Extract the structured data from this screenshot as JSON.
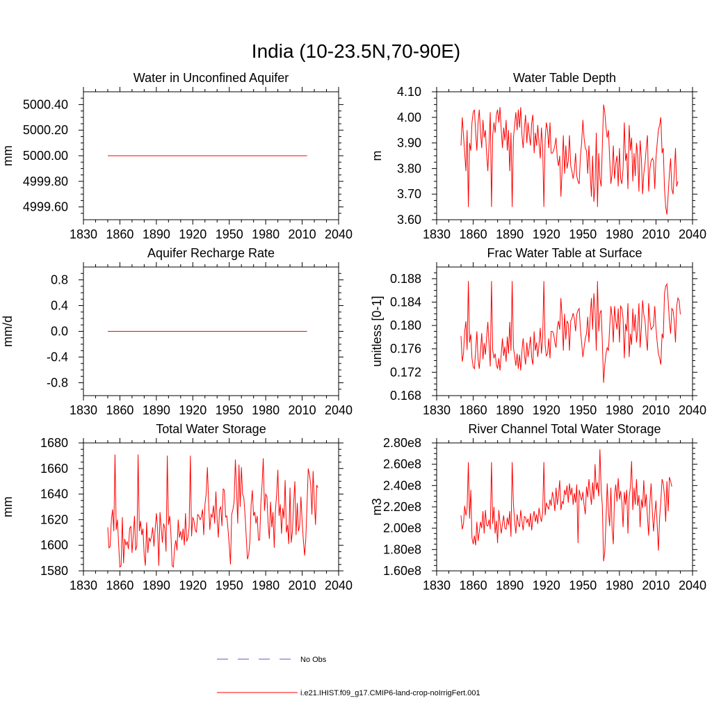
{
  "figure": {
    "title": "India (10-23.5N,70-90E)"
  },
  "legend": {
    "placement": "bottom-center",
    "entries": [
      {
        "label": "No Obs",
        "color": "#5a5ad2",
        "style": "dashed"
      },
      {
        "label": "i.e21.IHIST.f09_g17.CMIP6-land-crop-noIrrigFert.001",
        "color": "#ff0000",
        "style": "solid"
      }
    ]
  },
  "chart_data": [
    {
      "type": "line",
      "title": "Water in Unconfined Aquifer",
      "xlabel": "",
      "ylabel": "mm",
      "xlim": [
        1830,
        2040
      ],
      "ylim": [
        4999.5,
        5000.5
      ],
      "xticks": [
        1830,
        1860,
        1890,
        1920,
        1950,
        1980,
        2010,
        2040
      ],
      "yticks": [
        4999.6,
        4999.8,
        5000.0,
        5000.2,
        5000.4
      ],
      "ytick_labels": [
        "4999.60",
        "4999.80",
        "5000.00",
        "5000.20",
        "5000.40"
      ],
      "grid": false,
      "series": [
        {
          "name": "i.e21.IHIST.f09_g17.CMIP6-land-crop-noIrrigFert.001",
          "color": "#ff0000",
          "x": [
            1850,
            2014
          ],
          "y": [
            5000.0,
            5000.0
          ]
        }
      ]
    },
    {
      "type": "line",
      "title": "Water Table Depth",
      "xlabel": "",
      "ylabel": "m",
      "xlim": [
        1830,
        2040
      ],
      "ylim": [
        3.6,
        4.1
      ],
      "xticks": [
        1830,
        1860,
        1890,
        1920,
        1950,
        1980,
        2010,
        2040
      ],
      "yticks": [
        3.6,
        3.7,
        3.8,
        3.9,
        4.0,
        4.1
      ],
      "ytick_labels": [
        "3.60",
        "3.70",
        "3.80",
        "3.90",
        "4.00",
        "4.10"
      ],
      "grid": false,
      "series": [
        {
          "name": "i.e21.IHIST.f09_g17.CMIP6-land-crop-noIrrigFert.001",
          "color": "#ff0000",
          "x_start": 1850,
          "y": [
            3.89,
            4.0,
            3.93,
            3.86,
            3.79,
            3.95,
            3.65,
            3.9,
            3.87,
            3.98,
            4.02,
            4.03,
            3.94,
            3.87,
            3.98,
            4.03,
            3.94,
            3.88,
            3.99,
            3.92,
            3.95,
            3.86,
            3.79,
            3.9,
            4.02,
            3.65,
            3.93,
            3.98,
            3.94,
            4.01,
            4.03,
            3.98,
            4.04,
            3.95,
            3.88,
            3.96,
            3.91,
            3.99,
            3.87,
            3.95,
            3.79,
            3.94,
            3.65,
            3.92,
            3.97,
            4.02,
            3.95,
            4.03,
            3.96,
            4.04,
            3.93,
            3.88,
            3.96,
            4.01,
            3.9,
            3.98,
            3.93,
            3.89,
            3.98,
            4.01,
            3.86,
            3.94,
            3.89,
            3.97,
            3.9,
            3.84,
            3.96,
            3.88,
            3.65,
            3.91,
            3.98,
            3.95,
            3.88,
            3.98,
            3.86,
            3.86,
            3.87,
            3.89,
            3.92,
            3.84,
            3.81,
            3.85,
            3.69,
            3.8,
            3.93,
            3.78,
            3.89,
            3.8,
            3.83,
            3.93,
            3.81,
            3.79,
            3.76,
            3.79,
            3.86,
            3.77,
            3.75,
            3.74,
            3.85,
            3.9,
            3.99,
            3.92,
            3.88,
            3.87,
            3.78,
            3.89,
            3.78,
            3.69,
            3.85,
            3.67,
            3.73,
            3.94,
            3.65,
            3.86,
            3.76,
            3.73,
            3.89,
            4.05,
            4.02,
            3.96,
            3.92,
            3.95,
            3.84,
            3.74,
            3.78,
            3.89,
            3.76,
            3.82,
            3.85,
            3.73,
            3.88,
            3.76,
            3.74,
            3.8,
            3.98,
            3.83,
            3.86,
            3.72,
            3.97,
            3.87,
            3.92,
            3.75,
            3.86,
            3.77,
            3.9,
            3.85,
            3.71,
            3.91,
            3.84,
            3.7,
            3.78,
            3.82,
            3.88,
            3.93,
            3.71,
            3.8,
            3.83,
            3.84,
            3.83,
            3.72,
            3.84,
            3.9,
            3.95,
            3.97,
            4.0,
            3.86,
            3.88,
            3.72,
            3.65,
            3.62,
            3.7,
            3.78,
            3.84,
            3.72,
            3.7,
            3.78,
            3.88,
            3.73,
            3.75
          ]
        }
      ]
    },
    {
      "type": "line",
      "title": "Aquifer Recharge Rate",
      "xlabel": "",
      "ylabel": "mm/d",
      "xlim": [
        1830,
        2040
      ],
      "ylim": [
        -1.0,
        1.0
      ],
      "xticks": [
        1830,
        1860,
        1890,
        1920,
        1950,
        1980,
        2010,
        2040
      ],
      "yticks": [
        -0.8,
        -0.4,
        0.0,
        0.4,
        0.8
      ],
      "ytick_labels": [
        "-0.8",
        "-0.4",
        "0.0",
        "0.4",
        "0.8"
      ],
      "grid": false,
      "series": [
        {
          "name": "i.e21.IHIST.f09_g17.CMIP6-land-crop-noIrrigFert.001",
          "color": "#ff0000",
          "x": [
            1850,
            2014
          ],
          "y": [
            0.0,
            0.0
          ]
        }
      ]
    },
    {
      "type": "line",
      "title": "Frac Water Table at Surface",
      "xlabel": "",
      "ylabel": "unitless [0-1]",
      "xlim": [
        1830,
        2040
      ],
      "ylim": [
        0.168,
        0.19
      ],
      "xticks": [
        1830,
        1860,
        1890,
        1920,
        1950,
        1980,
        2010,
        2040
      ],
      "yticks": [
        0.168,
        0.172,
        0.176,
        0.18,
        0.184,
        0.188
      ],
      "ytick_labels": [
        "0.168",
        "0.172",
        "0.176",
        "0.180",
        "0.184",
        "0.188"
      ],
      "grid": false,
      "series": [
        {
          "name": "i.e21.IHIST.f09_g17.CMIP6-land-crop-noIrrigFert.001",
          "color": "#ff0000",
          "x_start": 1850,
          "y": [
            0.1782,
            0.1738,
            0.1752,
            0.179,
            0.1807,
            0.1758,
            0.1876,
            0.1771,
            0.1785,
            0.1744,
            0.1729,
            0.1726,
            0.1757,
            0.179,
            0.1742,
            0.1726,
            0.1757,
            0.1787,
            0.1742,
            0.177,
            0.175,
            0.1779,
            0.1806,
            0.1767,
            0.173,
            0.1876,
            0.1758,
            0.1744,
            0.1752,
            0.1733,
            0.1726,
            0.1744,
            0.1723,
            0.1752,
            0.1778,
            0.1748,
            0.1764,
            0.1738,
            0.1781,
            0.1752,
            0.1806,
            0.1757,
            0.1876,
            0.1762,
            0.1748,
            0.1731,
            0.1752,
            0.1726,
            0.175,
            0.1723,
            0.1757,
            0.1778,
            0.175,
            0.1733,
            0.1771,
            0.1746,
            0.1762,
            0.1781,
            0.1744,
            0.1733,
            0.179,
            0.1757,
            0.1771,
            0.1746,
            0.1767,
            0.1796,
            0.1752,
            0.178,
            0.1876,
            0.1767,
            0.1748,
            0.1752,
            0.1778,
            0.1744,
            0.179,
            0.179,
            0.1786,
            0.1771,
            0.1762,
            0.1796,
            0.1808,
            0.1793,
            0.1847,
            0.1812,
            0.1757,
            0.182,
            0.1776,
            0.1808,
            0.1803,
            0.1757,
            0.1808,
            0.1812,
            0.1821,
            0.1812,
            0.179,
            0.1819,
            0.1826,
            0.1829,
            0.1793,
            0.1771,
            0.1746,
            0.1762,
            0.1778,
            0.1786,
            0.1815,
            0.1771,
            0.1815,
            0.1847,
            0.1793,
            0.1855,
            0.1826,
            0.1757,
            0.1876,
            0.179,
            0.1821,
            0.1826,
            0.1771,
            0.1702,
            0.1733,
            0.1752,
            0.1762,
            0.1757,
            0.1796,
            0.1833,
            0.1815,
            0.1771,
            0.1833,
            0.1808,
            0.1793,
            0.1829,
            0.1771,
            0.1833,
            0.1829,
            0.1812,
            0.1744,
            0.1803,
            0.179,
            0.1838,
            0.1746,
            0.1786,
            0.1767,
            0.1829,
            0.179,
            0.1819,
            0.1771,
            0.1793,
            0.1838,
            0.1762,
            0.1796,
            0.1843,
            0.1819,
            0.1808,
            0.1778,
            0.1757,
            0.1838,
            0.1808,
            0.1793,
            0.1796,
            0.1799,
            0.1833,
            0.1796,
            0.1771,
            0.1752,
            0.1744,
            0.1733,
            0.1786,
            0.1778,
            0.1855,
            0.1867,
            0.1871,
            0.1843,
            0.1808,
            0.1786,
            0.1829,
            0.1826,
            0.1808,
            0.1771,
            0.1833,
            0.1847,
            0.1843,
            0.1819
          ]
        }
      ]
    },
    {
      "type": "line",
      "title": "Total Water Storage",
      "xlabel": "",
      "ylabel": "mm",
      "xlim": [
        1830,
        2040
      ],
      "ylim": [
        1580,
        1680
      ],
      "xticks": [
        1830,
        1860,
        1890,
        1920,
        1950,
        1980,
        2010,
        2040
      ],
      "yticks": [
        1580,
        1600,
        1620,
        1640,
        1660,
        1680
      ],
      "ytick_labels": [
        "1580",
        "1600",
        "1620",
        "1640",
        "1660",
        "1680"
      ],
      "grid": false,
      "series": [
        {
          "name": "i.e21.IHIST.f09_g17.CMIP6-land-crop-noIrrigFert.001",
          "color": "#ff0000",
          "x_start": 1850,
          "y": [
            1614,
            1598,
            1599,
            1620,
            1628,
            1611,
            1671,
            1612,
            1620,
            1600,
            1583,
            1584,
            1622,
            1586,
            1605,
            1600,
            1603,
            1597,
            1613,
            1615,
            1594,
            1608,
            1623,
            1596,
            1600,
            1671,
            1611,
            1619,
            1608,
            1613,
            1592,
            1584,
            1618,
            1594,
            1606,
            1603,
            1607,
            1614,
            1599,
            1612,
            1625,
            1613,
            1584,
            1626,
            1614,
            1602,
            1617,
            1613,
            1595,
            1670,
            1616,
            1623,
            1609,
            1584,
            1583,
            1598,
            1604,
            1596,
            1620,
            1606,
            1611,
            1604,
            1613,
            1600,
            1625,
            1603,
            1606,
            1614,
            1670,
            1607,
            1622,
            1619,
            1612,
            1610,
            1624,
            1623,
            1620,
            1622,
            1628,
            1608,
            1632,
            1640,
            1661,
            1634,
            1612,
            1624,
            1622,
            1631,
            1617,
            1642,
            1621,
            1606,
            1628,
            1630,
            1615,
            1644,
            1643,
            1622,
            1623,
            1612,
            1600,
            1585,
            1624,
            1628,
            1634,
            1667,
            1644,
            1617,
            1663,
            1630,
            1661,
            1640,
            1637,
            1624,
            1606,
            1589,
            1593,
            1603,
            1632,
            1643,
            1623,
            1626,
            1617,
            1623,
            1604,
            1604,
            1633,
            1647,
            1668,
            1627,
            1640,
            1638,
            1617,
            1605,
            1634,
            1614,
            1626,
            1598,
            1627,
            1640,
            1659,
            1623,
            1632,
            1609,
            1629,
            1621,
            1651,
            1610,
            1616,
            1601,
            1645,
            1602,
            1611,
            1633,
            1650,
            1608,
            1633,
            1611,
            1616,
            1638,
            1618,
            1604,
            1592,
            1605,
            1632,
            1660,
            1655,
            1648,
            1624,
            1658,
            1635,
            1616,
            1647,
            1645
          ]
        }
      ]
    },
    {
      "type": "line",
      "title": "River Channel Total Water Storage",
      "xlabel": "",
      "ylabel": "m3",
      "xlim": [
        1830,
        2040
      ],
      "ylim": [
        160000000.0,
        280000000.0
      ],
      "xticks": [
        1830,
        1860,
        1890,
        1920,
        1950,
        1980,
        2010,
        2040
      ],
      "yticks": [
        160000000.0,
        180000000.0,
        200000000.0,
        220000000.0,
        240000000.0,
        260000000.0,
        280000000.0
      ],
      "ytick_labels": [
        "1.60e8",
        "1.80e8",
        "2.00e8",
        "2.20e8",
        "2.40e8",
        "2.60e8",
        "2.80e8"
      ],
      "grid": false,
      "series": [
        {
          "name": "i.e21.IHIST.f09_g17.CMIP6-land-crop-noIrrigFert.001",
          "color": "#ff0000",
          "x_start": 1850,
          "y": [
            212000000.0,
            199000000.0,
            204000000.0,
            221000000.0,
            212000000.0,
            219000000.0,
            262000000.0,
            209000000.0,
            236000000.0,
            191000000.0,
            185000000.0,
            193000000.0,
            184000000.0,
            206000000.0,
            188000000.0,
            197000000.0,
            206000000.0,
            200000000.0,
            216000000.0,
            195000000.0,
            217000000.0,
            203000000.0,
            202000000.0,
            208000000.0,
            199000000.0,
            262000000.0,
            204000000.0,
            220000000.0,
            195000000.0,
            207000000.0,
            186000000.0,
            217000000.0,
            205000000.0,
            195000000.0,
            204000000.0,
            212000000.0,
            200000000.0,
            199000000.0,
            210000000.0,
            203000000.0,
            216000000.0,
            192000000.0,
            262000000.0,
            223000000.0,
            206000000.0,
            195000000.0,
            213000000.0,
            205000000.0,
            201000000.0,
            217000000.0,
            207000000.0,
            198000000.0,
            211000000.0,
            210000000.0,
            205000000.0,
            209000000.0,
            201000000.0,
            214000000.0,
            198000000.0,
            210000000.0,
            216000000.0,
            206000000.0,
            213000000.0,
            204000000.0,
            219000000.0,
            211000000.0,
            206000000.0,
            215000000.0,
            262000000.0,
            212000000.0,
            224000000.0,
            220000000.0,
            218000000.0,
            227000000.0,
            221000000.0,
            234000000.0,
            228000000.0,
            216000000.0,
            238000000.0,
            222000000.0,
            231000000.0,
            245000000.0,
            217000000.0,
            225000000.0,
            223000000.0,
            236000000.0,
            231000000.0,
            240000000.0,
            224000000.0,
            242000000.0,
            231000000.0,
            238000000.0,
            222000000.0,
            233000000.0,
            224000000.0,
            241000000.0,
            186000000.0,
            236000000.0,
            230000000.0,
            226000000.0,
            234000000.0,
            222000000.0,
            213000000.0,
            239000000.0,
            229000000.0,
            246000000.0,
            233000000.0,
            222000000.0,
            243000000.0,
            227000000.0,
            260000000.0,
            236000000.0,
            243000000.0,
            230000000.0,
            274000000.0,
            236000000.0,
            221000000.0,
            169000000.0,
            178000000.0,
            208000000.0,
            242000000.0,
            215000000.0,
            202000000.0,
            238000000.0,
            200000000.0,
            185000000.0,
            230000000.0,
            241000000.0,
            225000000.0,
            247000000.0,
            227000000.0,
            235000000.0,
            224000000.0,
            201000000.0,
            234000000.0,
            222000000.0,
            236000000.0,
            195000000.0,
            229000000.0,
            239000000.0,
            263000000.0,
            217000000.0,
            238000000.0,
            222000000.0,
            246000000.0,
            221000000.0,
            231000000.0,
            201000000.0,
            227000000.0,
            219000000.0,
            245000000.0,
            220000000.0,
            232000000.0,
            210000000.0,
            193000000.0,
            224000000.0,
            242000000.0,
            216000000.0,
            197000000.0,
            213000000.0,
            226000000.0,
            203000000.0,
            179000000.0,
            210000000.0,
            225000000.0,
            246000000.0,
            242000000.0,
            230000000.0,
            206000000.0,
            244000000.0,
            216000000.0,
            248000000.0,
            244000000.0,
            239000000.0
          ]
        }
      ]
    }
  ]
}
